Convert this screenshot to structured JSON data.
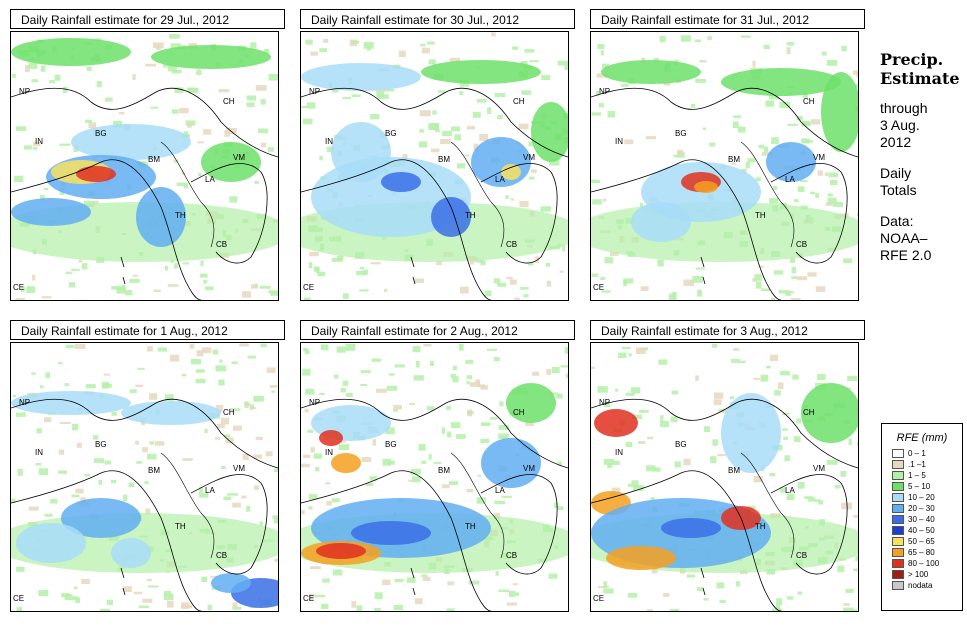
{
  "panels": [
    {
      "title": "Daily Rainfall estimate for  29 Jul., 2012",
      "variant": 0
    },
    {
      "title": "Daily Rainfall estimate for  30 Jul., 2012",
      "variant": 1
    },
    {
      "title": "Daily Rainfall estimate for  31 Jul., 2012",
      "variant": 2
    },
    {
      "title": "Daily Rainfall estimate for  1 Aug., 2012",
      "variant": 3
    },
    {
      "title": "Daily Rainfall estimate for  2 Aug., 2012",
      "variant": 4
    },
    {
      "title": "Daily Rainfall estimate for  3 Aug., 2012",
      "variant": 5
    }
  ],
  "map_labels": {
    "np": "NP",
    "ch": "CH",
    "bg": "BG",
    "in": "IN",
    "bm": "BM",
    "vm": "VM",
    "la": "LA",
    "th": "TH",
    "cb": "CB",
    "ce": "CE"
  },
  "sidebar": {
    "title_line1": "Precip.",
    "title_line2": "Estimate",
    "through": "through",
    "date_line1": "3 Aug.",
    "date_line2": "2012",
    "daily_line1": "Daily",
    "daily_line2": "Totals",
    "data_line1": "Data:",
    "data_line2": "NOAA–",
    "data_line3": "RFE 2.0"
  },
  "legend": {
    "title": "RFE (mm)",
    "items": [
      {
        "label": "0 – 1",
        "color": "#ffffff"
      },
      {
        "label": ".1 –1",
        "color": "#e8d8bf"
      },
      {
        "label": "1 – 5",
        "color": "#b4f0a8"
      },
      {
        "label": "5 – 10",
        "color": "#6de06a"
      },
      {
        "label": "10 – 20",
        "color": "#a8dcf8"
      },
      {
        "label": "20 – 30",
        "color": "#62aef2"
      },
      {
        "label": "30 – 40",
        "color": "#3a6ee8"
      },
      {
        "label": "40 – 50",
        "color": "#1a40d0"
      },
      {
        "label": "50 – 65",
        "color": "#f8e060"
      },
      {
        "label": "65 – 80",
        "color": "#f5a020"
      },
      {
        "label": "80 – 100",
        "color": "#e03020"
      },
      {
        "label": "> 100",
        "color": "#a02010"
      },
      {
        "label": "nodata",
        "color": "#c8c8c8"
      }
    ]
  }
}
